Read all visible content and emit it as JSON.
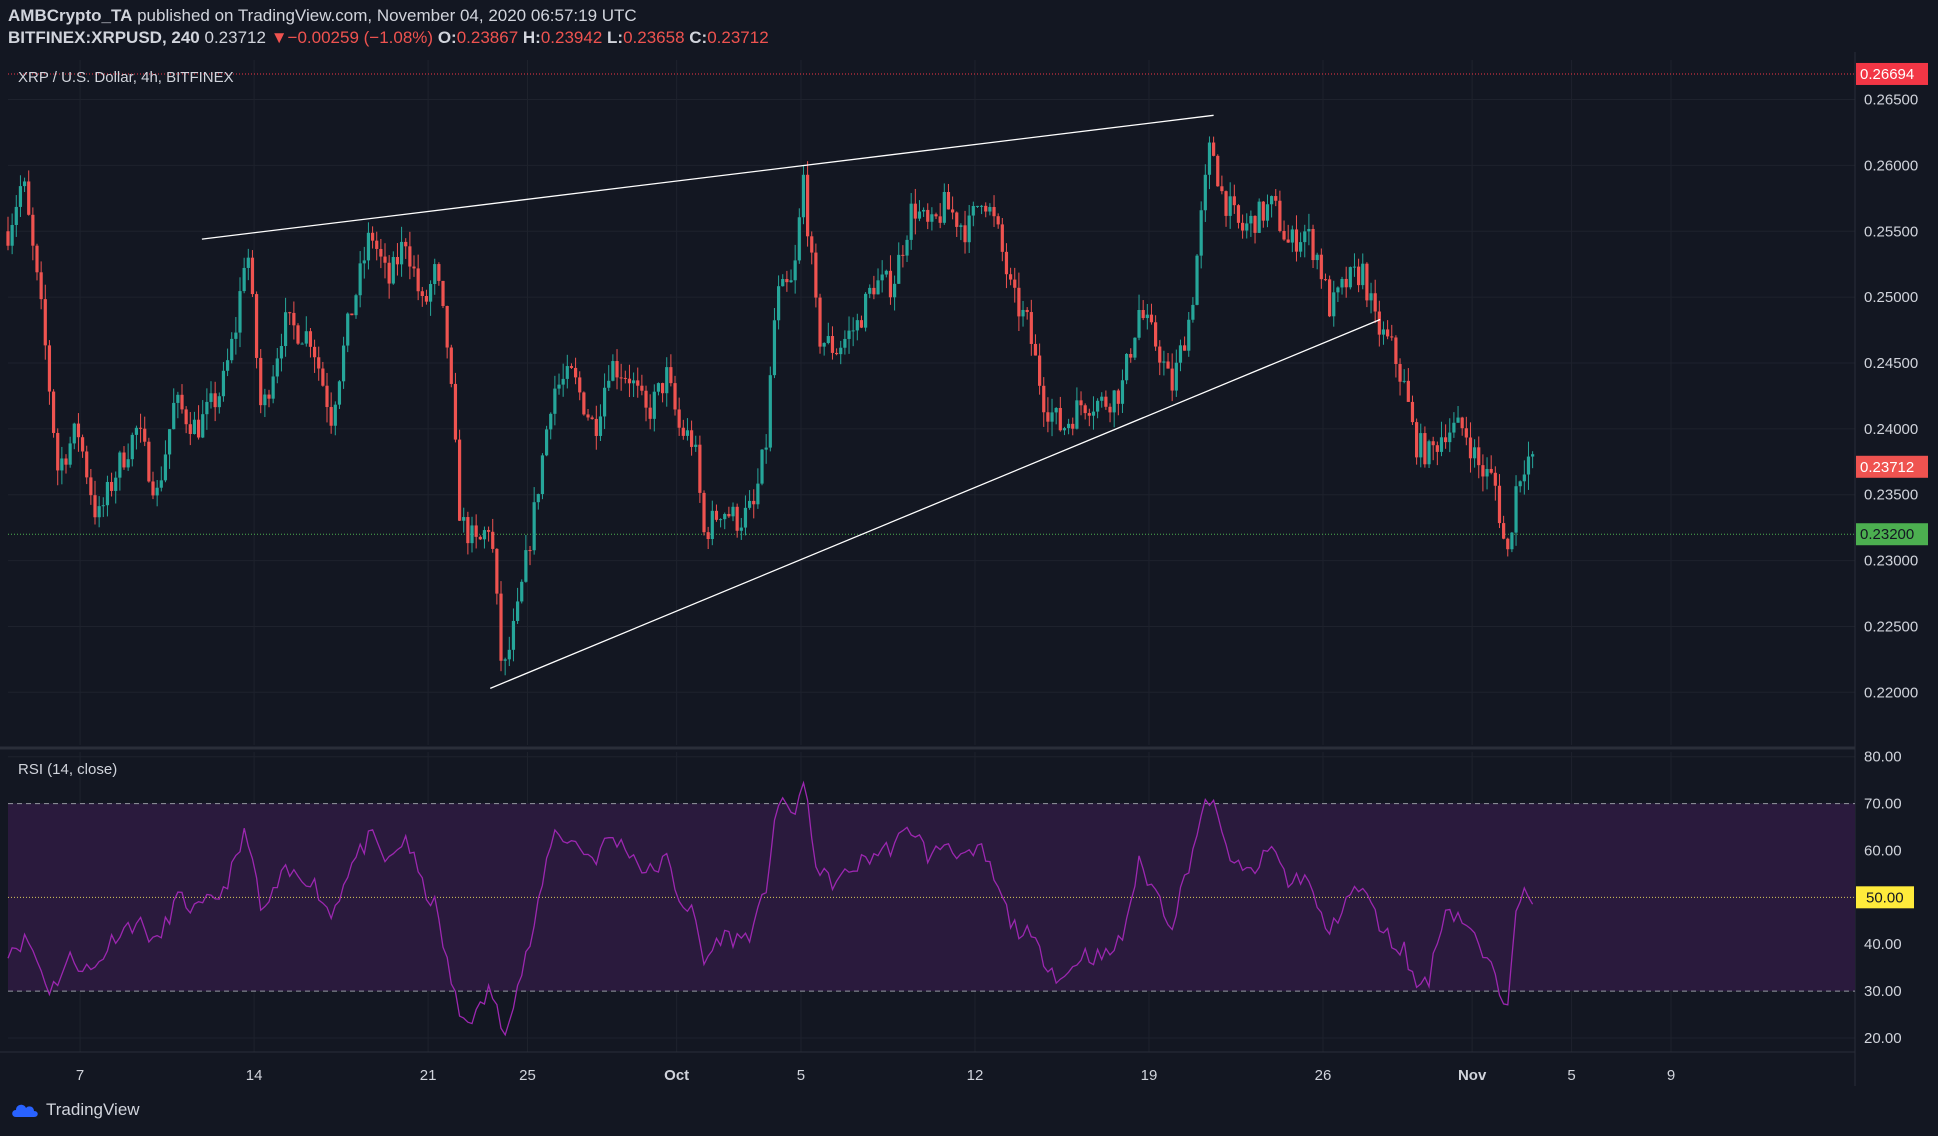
{
  "header": {
    "author": "AMBCrypto_TA",
    "published_text": "published on TradingView.com, November 04, 2020 06:57:19 UTC",
    "symbol": "BITFINEX:XRPUSD, 240",
    "last": "0.23712",
    "arrow": "▼",
    "change": "−0.00259 (−1.08%)",
    "o_label": "O:",
    "o": "0.23867",
    "h_label": "H:",
    "h": "0.23942",
    "l_label": "L:",
    "l": "0.23658",
    "c_label": "C:",
    "c": "0.23712"
  },
  "footer": {
    "brand": "TradingView"
  },
  "colors": {
    "background": "#131722",
    "grid": "#1e222d",
    "up": "#26a69a",
    "down": "#ef5350",
    "rsi_line": "#9c27b0",
    "rsi_band": "#2a1a3d",
    "resistance": "#f23645",
    "support": "#4caf50",
    "text": "#d1d4dc"
  },
  "chart_data": [
    {
      "type": "candlestick",
      "title": "XRP / U.S. Dollar, 4h, BITFINEX",
      "ylim": [
        0.216,
        0.268
      ],
      "y_ticks": [
        "0.22000",
        "0.22500",
        "0.23000",
        "0.23500",
        "0.24000",
        "0.24500",
        "0.25000",
        "0.25500",
        "0.26000",
        "0.26500"
      ],
      "x_ticks": [
        {
          "label": "7",
          "day": 6.5
        },
        {
          "label": "14",
          "day": 13.5
        },
        {
          "label": "21",
          "day": 20.5
        },
        {
          "label": "25",
          "day": 24.5
        },
        {
          "label": "Oct",
          "day": 30.5
        },
        {
          "label": "5",
          "day": 35.5
        },
        {
          "label": "12",
          "day": 42.5
        },
        {
          "label": "19",
          "day": 49.5
        },
        {
          "label": "26",
          "day": 56.5
        },
        {
          "label": "Nov",
          "day": 62.5
        },
        {
          "label": "5",
          "day": 66.5
        },
        {
          "label": "9",
          "day": 70.5
        }
      ],
      "x_range_days": [
        3.6,
        77.5
      ],
      "last_day": 65.0,
      "price_labels": [
        {
          "name": "resistance-level",
          "value": 0.26694,
          "text": "0.26694",
          "color": "#f23645"
        },
        {
          "name": "current-price",
          "value": 0.23712,
          "text": "0.23712",
          "color": "#ef5350"
        },
        {
          "name": "support-level",
          "value": 0.232,
          "text": "0.23200",
          "color": "#4caf50"
        }
      ],
      "trendlines": [
        {
          "name": "upper-wedge-line",
          "from": [
            11.4,
            0.2544
          ],
          "to": [
            52.1,
            0.2638
          ]
        },
        {
          "name": "lower-wedge-line",
          "from": [
            23.0,
            0.2203
          ],
          "to": [
            58.8,
            0.2483
          ]
        }
      ],
      "series": [
        {
          "anchors": [
            [
              3.6,
              0.255
            ],
            [
              4.2,
              0.259
            ],
            [
              5.0,
              0.248
            ],
            [
              5.6,
              0.237
            ],
            [
              6.4,
              0.24
            ],
            [
              7.2,
              0.233
            ],
            [
              8.0,
              0.237
            ],
            [
              8.8,
              0.24
            ],
            [
              9.6,
              0.235
            ],
            [
              10.3,
              0.242
            ],
            [
              11.2,
              0.24
            ],
            [
              12.2,
              0.243
            ],
            [
              12.8,
              0.248
            ],
            [
              13.2,
              0.2545
            ],
            [
              13.8,
              0.241
            ],
            [
              14.7,
              0.248
            ],
            [
              15.8,
              0.247
            ],
            [
              16.6,
              0.241
            ],
            [
              17.3,
              0.248
            ],
            [
              18.2,
              0.255
            ],
            [
              18.9,
              0.251
            ],
            [
              19.6,
              0.2545
            ],
            [
              20.3,
              0.249
            ],
            [
              20.8,
              0.252
            ],
            [
              21.3,
              0.246
            ],
            [
              21.8,
              0.233
            ],
            [
              22.5,
              0.231
            ],
            [
              23.0,
              0.233
            ],
            [
              23.5,
              0.221
            ],
            [
              24.1,
              0.226
            ],
            [
              24.8,
              0.234
            ],
            [
              25.5,
              0.243
            ],
            [
              26.3,
              0.244
            ],
            [
              27.2,
              0.24
            ],
            [
              27.8,
              0.245
            ],
            [
              28.6,
              0.244
            ],
            [
              29.3,
              0.241
            ],
            [
              30.1,
              0.244
            ],
            [
              30.6,
              0.24
            ],
            [
              31.2,
              0.239
            ],
            [
              31.6,
              0.232
            ],
            [
              32.3,
              0.234
            ],
            [
              33.0,
              0.233
            ],
            [
              33.6,
              0.234
            ],
            [
              34.1,
              0.239
            ],
            [
              34.5,
              0.25
            ],
            [
              35.2,
              0.251
            ],
            [
              35.6,
              0.259
            ],
            [
              36.2,
              0.247
            ],
            [
              36.9,
              0.246
            ],
            [
              37.8,
              0.248
            ],
            [
              38.4,
              0.251
            ],
            [
              39.2,
              0.251
            ],
            [
              40.0,
              0.257
            ],
            [
              40.7,
              0.255
            ],
            [
              41.3,
              0.257
            ],
            [
              42.2,
              0.255
            ],
            [
              42.8,
              0.258
            ],
            [
              43.4,
              0.255
            ],
            [
              44.0,
              0.25
            ],
            [
              44.6,
              0.248
            ],
            [
              45.3,
              0.242
            ],
            [
              46.0,
              0.24
            ],
            [
              46.8,
              0.242
            ],
            [
              47.7,
              0.242
            ],
            [
              48.4,
              0.243
            ],
            [
              49.1,
              0.249
            ],
            [
              49.9,
              0.246
            ],
            [
              50.4,
              0.243
            ],
            [
              51.2,
              0.249
            ],
            [
              51.6,
              0.256
            ],
            [
              52.0,
              0.262
            ],
            [
              52.4,
              0.258
            ],
            [
              53.2,
              0.255
            ],
            [
              53.8,
              0.256
            ],
            [
              54.5,
              0.257
            ],
            [
              55.1,
              0.254
            ],
            [
              55.8,
              0.255
            ],
            [
              56.3,
              0.253
            ],
            [
              56.8,
              0.249
            ],
            [
              57.4,
              0.251
            ],
            [
              58.1,
              0.252
            ],
            [
              58.6,
              0.248
            ],
            [
              59.3,
              0.246
            ],
            [
              59.8,
              0.243
            ],
            [
              60.2,
              0.239
            ],
            [
              60.8,
              0.238
            ],
            [
              61.4,
              0.24
            ],
            [
              62.2,
              0.24
            ],
            [
              62.8,
              0.237
            ],
            [
              63.4,
              0.236
            ],
            [
              63.9,
              0.23
            ],
            [
              64.3,
              0.236
            ],
            [
              64.7,
              0.238
            ],
            [
              65.0,
              0.2371
            ]
          ]
        }
      ]
    },
    {
      "type": "line",
      "title": "RSI (14, close)",
      "ylim": [
        17,
        81
      ],
      "y_ticks": [
        "20.00",
        "30.00",
        "40.00",
        "50.00",
        "60.00",
        "70.00",
        "80.00"
      ],
      "band": [
        30,
        70
      ],
      "midline": 50,
      "mid_label": "50.00",
      "series": [
        {
          "anchors": [
            [
              3.6,
              39
            ],
            [
              4.4,
              41
            ],
            [
              5.3,
              30
            ],
            [
              6.1,
              37
            ],
            [
              7.0,
              34
            ],
            [
              7.9,
              42
            ],
            [
              8.8,
              45
            ],
            [
              9.6,
              40
            ],
            [
              10.4,
              50
            ],
            [
              11.2,
              47
            ],
            [
              12.2,
              51
            ],
            [
              12.8,
              58
            ],
            [
              13.2,
              65
            ],
            [
              13.8,
              46
            ],
            [
              14.7,
              55
            ],
            [
              15.8,
              54
            ],
            [
              16.6,
              46
            ],
            [
              17.3,
              56
            ],
            [
              18.2,
              63
            ],
            [
              18.9,
              57
            ],
            [
              19.6,
              63
            ],
            [
              20.3,
              52
            ],
            [
              20.8,
              48
            ],
            [
              21.3,
              35
            ],
            [
              21.8,
              24
            ],
            [
              22.5,
              25
            ],
            [
              23.0,
              31
            ],
            [
              23.5,
              21
            ],
            [
              24.1,
              31
            ],
            [
              24.8,
              44
            ],
            [
              25.5,
              64
            ],
            [
              26.3,
              62
            ],
            [
              27.2,
              58
            ],
            [
              27.8,
              63
            ],
            [
              28.6,
              60
            ],
            [
              29.3,
              55
            ],
            [
              30.1,
              58
            ],
            [
              30.6,
              50
            ],
            [
              31.2,
              46
            ],
            [
              31.6,
              36
            ],
            [
              32.3,
              42
            ],
            [
              33.0,
              41
            ],
            [
              33.6,
              43
            ],
            [
              34.1,
              52
            ],
            [
              34.5,
              70
            ],
            [
              35.2,
              68
            ],
            [
              35.6,
              74
            ],
            [
              36.2,
              55
            ],
            [
              36.9,
              53
            ],
            [
              37.8,
              57
            ],
            [
              38.4,
              59
            ],
            [
              39.2,
              61
            ],
            [
              40.0,
              65
            ],
            [
              40.7,
              58
            ],
            [
              41.3,
              62
            ],
            [
              42.2,
              58
            ],
            [
              42.8,
              60
            ],
            [
              43.4,
              52
            ],
            [
              44.0,
              44
            ],
            [
              44.6,
              42
            ],
            [
              45.3,
              37
            ],
            [
              46.0,
              32
            ],
            [
              46.8,
              38
            ],
            [
              47.7,
              37
            ],
            [
              48.4,
              41
            ],
            [
              49.1,
              57
            ],
            [
              49.9,
              50
            ],
            [
              50.4,
              44
            ],
            [
              51.2,
              59
            ],
            [
              51.6,
              67
            ],
            [
              52.0,
              72
            ],
            [
              52.4,
              63
            ],
            [
              53.2,
              55
            ],
            [
              53.8,
              56
            ],
            [
              54.5,
              61
            ],
            [
              55.1,
              53
            ],
            [
              55.8,
              55
            ],
            [
              56.3,
              47
            ],
            [
              56.8,
              42
            ],
            [
              57.4,
              50
            ],
            [
              58.1,
              52
            ],
            [
              58.6,
              46
            ],
            [
              59.3,
              40
            ],
            [
              59.8,
              39
            ],
            [
              60.2,
              31
            ],
            [
              60.8,
              33
            ],
            [
              61.4,
              48
            ],
            [
              62.2,
              45
            ],
            [
              62.8,
              39
            ],
            [
              63.4,
              33
            ],
            [
              63.9,
              27
            ],
            [
              64.3,
              51
            ],
            [
              64.7,
              50
            ],
            [
              65.0,
              47
            ]
          ]
        }
      ]
    }
  ]
}
